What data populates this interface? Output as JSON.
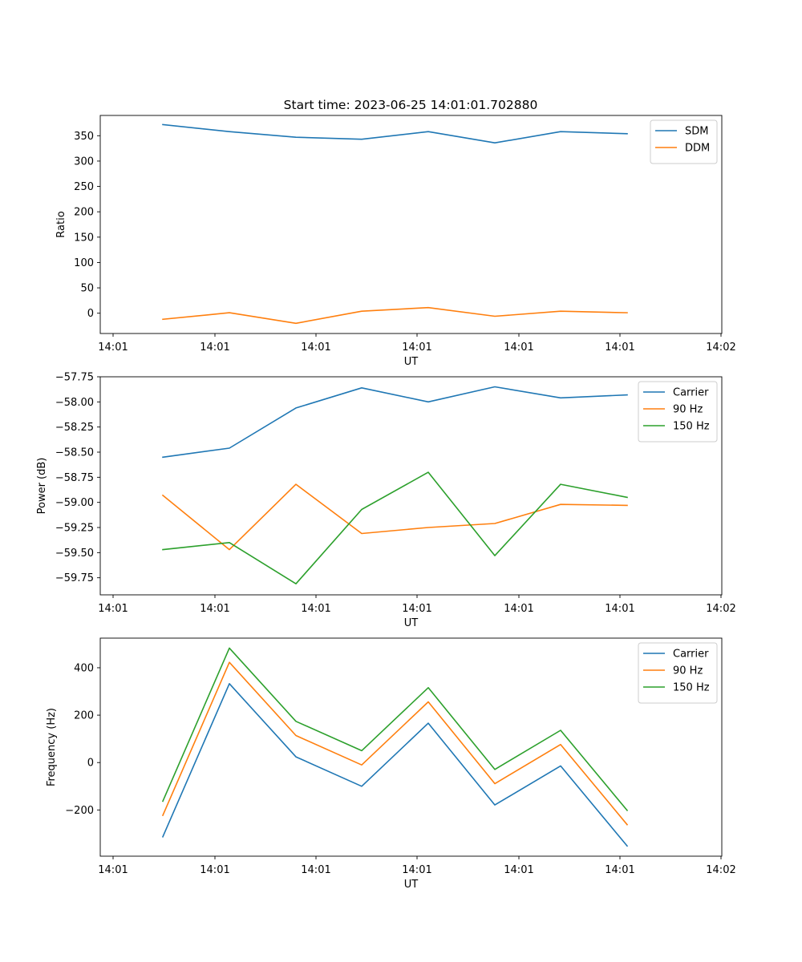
{
  "figure_title": "Start time: 2023-06-25 14:01:01.702880",
  "colors": {
    "blue": "#1f77b4",
    "orange": "#ff7f0e",
    "green": "#2ca02c"
  },
  "chart_data": [
    {
      "type": "line",
      "xlabel": "UT",
      "ylabel": "Ratio",
      "xtick_labels": [
        "14:01",
        "14:01",
        "14:01",
        "14:01",
        "14:01",
        "14:01",
        "14:02"
      ],
      "yticks": [
        0,
        50,
        100,
        150,
        200,
        250,
        300,
        350
      ],
      "ytick_labels": [
        "0",
        "50",
        "100",
        "150",
        "200",
        "250",
        "300",
        "350"
      ],
      "ylim": [
        -40,
        390
      ],
      "grid": false,
      "legend_position": "upper-right",
      "series": [
        {
          "name": "SDM",
          "color": "#1f77b4",
          "values": [
            372,
            358,
            347,
            343,
            358,
            336,
            358,
            354
          ]
        },
        {
          "name": "DDM",
          "color": "#ff7f0e",
          "values": [
            -12,
            1,
            -20,
            4,
            11,
            -6,
            4,
            1
          ]
        }
      ]
    },
    {
      "type": "line",
      "xlabel": "UT",
      "ylabel": "Power (dB)",
      "xtick_labels": [
        "14:01",
        "14:01",
        "14:01",
        "14:01",
        "14:01",
        "14:01",
        "14:02"
      ],
      "yticks": [
        -57.75,
        -58.0,
        -58.25,
        -58.5,
        -58.75,
        -59.0,
        -59.25,
        -59.5,
        -59.75
      ],
      "ytick_labels": [
        "−57.75",
        "−58.00",
        "−58.25",
        "−58.50",
        "−58.75",
        "−59.00",
        "−59.25",
        "−59.50",
        "−59.75"
      ],
      "ylim": [
        -59.92,
        -57.75
      ],
      "grid": false,
      "legend_position": "upper-right",
      "series": [
        {
          "name": "Carrier",
          "color": "#1f77b4",
          "values": [
            -58.55,
            -58.46,
            -58.06,
            -57.86,
            -58.0,
            -57.85,
            -57.96,
            -57.93
          ]
        },
        {
          "name": "90 Hz",
          "color": "#ff7f0e",
          "values": [
            -58.93,
            -59.47,
            -58.82,
            -59.31,
            -59.25,
            -59.21,
            -59.02,
            -59.03
          ]
        },
        {
          "name": "150 Hz",
          "color": "#2ca02c",
          "values": [
            -59.47,
            -59.4,
            -59.81,
            -59.07,
            -58.7,
            -59.53,
            -58.82,
            -58.95
          ]
        }
      ]
    },
    {
      "type": "line",
      "xlabel": "UT",
      "ylabel": "Frequency (Hz)",
      "xtick_labels": [
        "14:01",
        "14:01",
        "14:01",
        "14:01",
        "14:01",
        "14:01",
        "14:02"
      ],
      "yticks": [
        -200,
        0,
        200,
        400
      ],
      "ytick_labels": [
        "−200",
        "0",
        "200",
        "400"
      ],
      "ylim": [
        -395,
        525
      ],
      "grid": false,
      "legend_position": "upper-right",
      "series": [
        {
          "name": "Carrier",
          "color": "#1f77b4",
          "values": [
            -313,
            333,
            24,
            -100,
            166,
            -179,
            -14,
            -352
          ]
        },
        {
          "name": "90 Hz",
          "color": "#ff7f0e",
          "values": [
            -223,
            423,
            114,
            -10,
            256,
            -89,
            76,
            -262
          ]
        },
        {
          "name": "150 Hz",
          "color": "#2ca02c",
          "values": [
            -163,
            483,
            174,
            50,
            316,
            -29,
            136,
            -202
          ]
        }
      ]
    }
  ]
}
